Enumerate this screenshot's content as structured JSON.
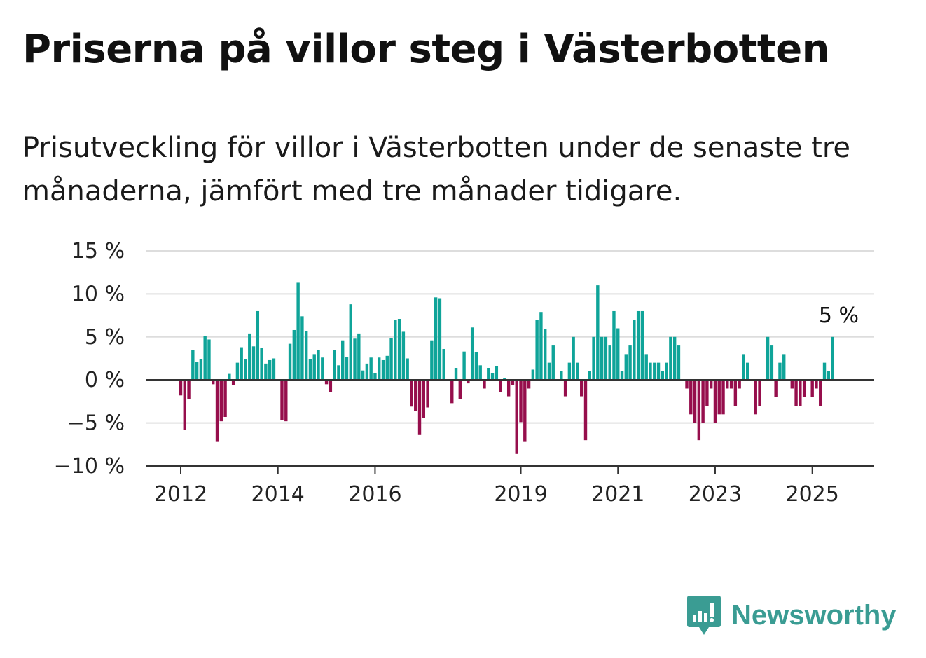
{
  "title": "Priserna på villor steg i Västerbotten",
  "subtitle": "Prisutveckling för villor i Västerbotten under de senaste tre månaderna, jämfört med tre månader tidigare.",
  "brand": {
    "name": "Newsworthy",
    "color": "#3a9c93",
    "icon": "newsworthy-logo-icon"
  },
  "chart_data": {
    "type": "bar",
    "ylim": [
      -10,
      15
    ],
    "yticks": [
      15,
      10,
      5,
      0,
      -5,
      -10
    ],
    "ytick_labels": [
      "15 %",
      "10 %",
      "5 %",
      "0 %",
      "−5 %",
      "−10 %"
    ],
    "xtick_labels": [
      "2012",
      "2014",
      "2016",
      "2019",
      "2021",
      "2023",
      "2025"
    ],
    "xtick_months": [
      0,
      24,
      48,
      84,
      108,
      132,
      156
    ],
    "x_start": "2012-01",
    "last_value_label": "5 %",
    "colors": {
      "positive": "#0fa499",
      "negative": "#960e4c",
      "grid": "#dddddd",
      "axis": "#333333"
    },
    "grid": true,
    "values": [
      -1.8,
      -5.8,
      -2.2,
      3.5,
      2.1,
      2.4,
      5.1,
      4.7,
      -0.5,
      -7.2,
      -4.8,
      -4.3,
      0.7,
      -0.6,
      2.0,
      3.8,
      2.4,
      5.4,
      3.9,
      8.0,
      3.7,
      1.9,
      2.3,
      2.5,
      0.0,
      -4.7,
      -4.8,
      4.2,
      5.8,
      11.3,
      7.4,
      5.7,
      2.4,
      3.0,
      3.5,
      2.6,
      -0.5,
      -1.4,
      3.5,
      1.7,
      4.6,
      2.7,
      8.8,
      4.8,
      5.4,
      1.1,
      1.9,
      2.6,
      0.8,
      2.6,
      2.3,
      2.8,
      4.9,
      7.0,
      7.1,
      5.6,
      2.5,
      -3.1,
      -3.6,
      -6.4,
      -4.4,
      -3.2,
      4.6,
      9.6,
      9.5,
      3.6,
      0.0,
      -2.7,
      1.4,
      -2.2,
      3.3,
      -0.4,
      6.1,
      3.2,
      1.7,
      -1.0,
      1.4,
      0.8,
      1.6,
      -1.4,
      0.2,
      -1.9,
      -0.6,
      -8.6,
      -4.9,
      -7.2,
      -1.0,
      1.2,
      7.0,
      7.9,
      5.9,
      2.0,
      4.0,
      0.0,
      1.0,
      -1.9,
      2.0,
      5.0,
      2.0,
      -1.9,
      -7.0,
      1.0,
      5.0,
      11.0,
      5.0,
      5.0,
      4.0,
      8.0,
      6.0,
      1.0,
      3.0,
      4.0,
      7.0,
      8.0,
      8.0,
      3.0,
      2.0,
      2.0,
      2.0,
      1.0,
      2.0,
      5.0,
      5.0,
      4.0,
      0.0,
      -1.0,
      -4.0,
      -5.0,
      -7.0,
      -5.0,
      -3.0,
      -1.0,
      -5.0,
      -4.0,
      -4.0,
      -1.0,
      -1.0,
      -3.0,
      -1.0,
      3.0,
      2.0,
      0.0,
      -4.0,
      -3.0,
      0.0,
      5.0,
      4.0,
      -2.0,
      2.0,
      3.0,
      0.0,
      -1.0,
      -3.0,
      -3.0,
      -2.0,
      0.0,
      -2.0,
      -1.0,
      -3.0,
      2.0,
      1.0,
      5.0
    ]
  }
}
